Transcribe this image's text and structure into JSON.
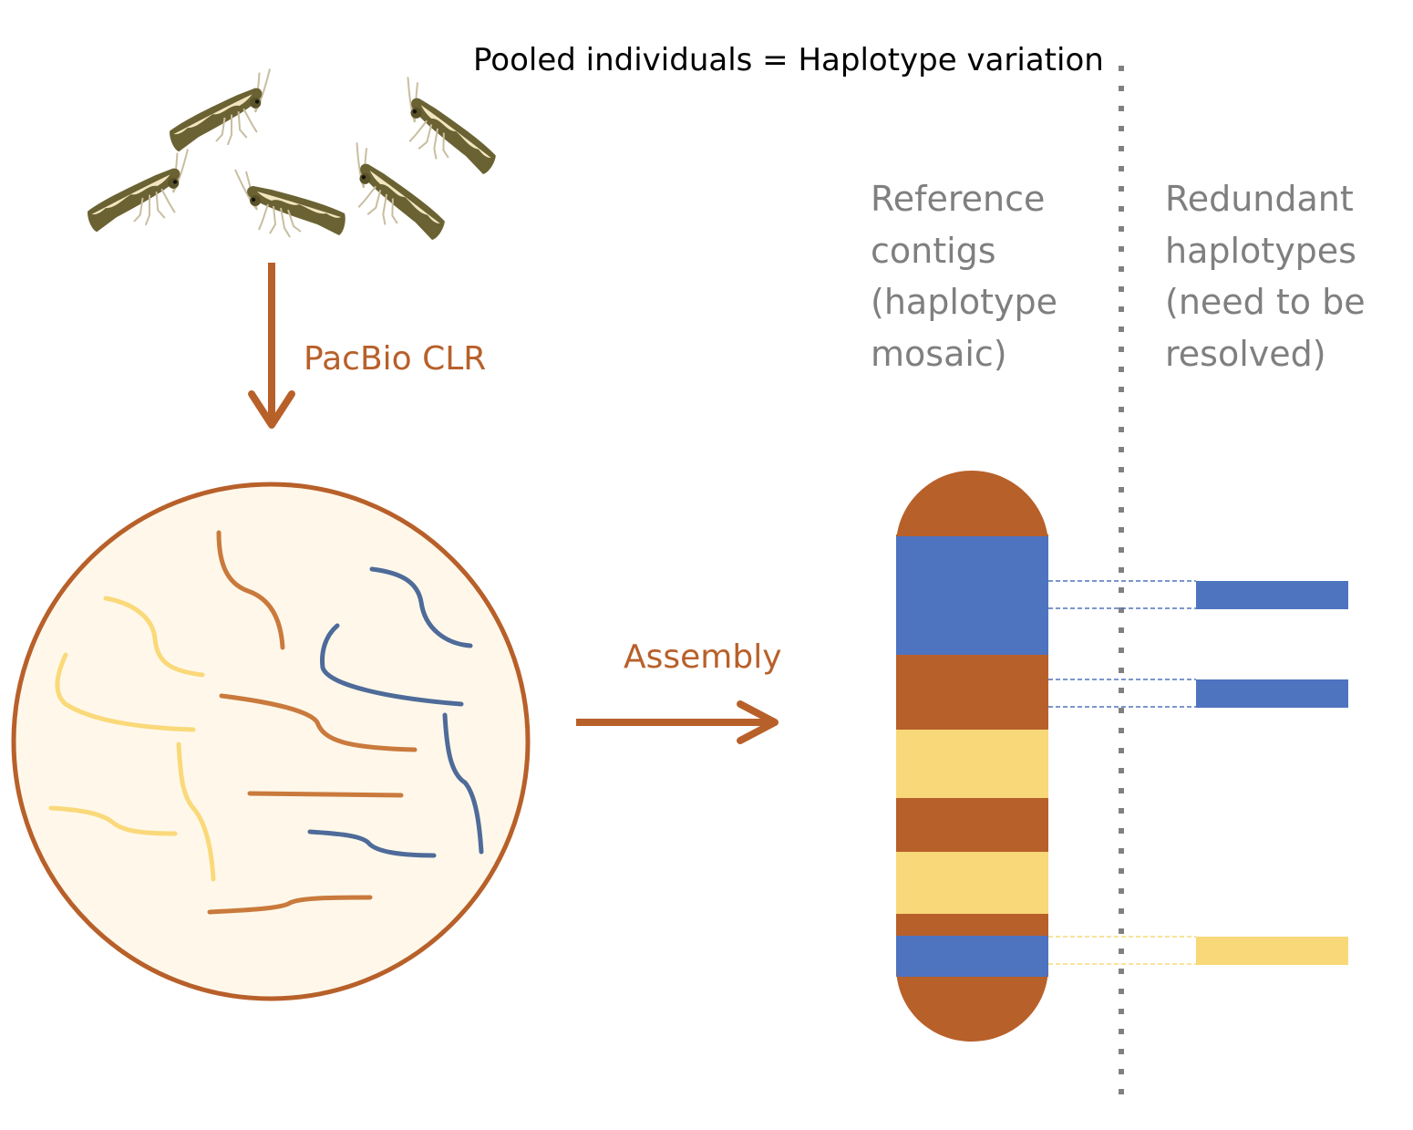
{
  "title": "Pooled individuals = Haplotype variation",
  "step1": {
    "label": "PacBio CLR"
  },
  "step2": {
    "label": "Assembly"
  },
  "reference_column": {
    "lines": [
      "Reference",
      "contigs",
      "(haplotype",
      "mosaic)"
    ]
  },
  "redundant_column": {
    "lines": [
      "Redundant",
      "haplotypes",
      "(need to be",
      "resolved)"
    ]
  },
  "colors": {
    "brown": "#b8602a",
    "read_brown": "#c97a3c",
    "blue": "#4e73bf",
    "yellow": "#f8d878",
    "read_yellow": "#fad97a",
    "read_blue": "#4e6b99",
    "circle_fill": "#fff8ea",
    "label_orange": "#b8602a",
    "label_gray": "#7f7f7f",
    "moth_body": "#6b6233",
    "divider": "#808080"
  },
  "icons": {
    "moths": "moth-icon",
    "reads_pool": "sequencing-reads-pool-icon",
    "chromosome": "chromosome-contig-icon"
  },
  "reference_contig_segments": [
    {
      "haplotype": "brown"
    },
    {
      "haplotype": "blue"
    },
    {
      "haplotype": "brown"
    },
    {
      "haplotype": "yellow"
    },
    {
      "haplotype": "brown"
    },
    {
      "haplotype": "yellow"
    },
    {
      "haplotype": "brown"
    },
    {
      "haplotype": "blue"
    },
    {
      "haplotype": "brown"
    }
  ],
  "redundant_haplotypes": [
    {
      "haplotype": "blue"
    },
    {
      "haplotype": "blue"
    },
    {
      "haplotype": "yellow"
    }
  ]
}
